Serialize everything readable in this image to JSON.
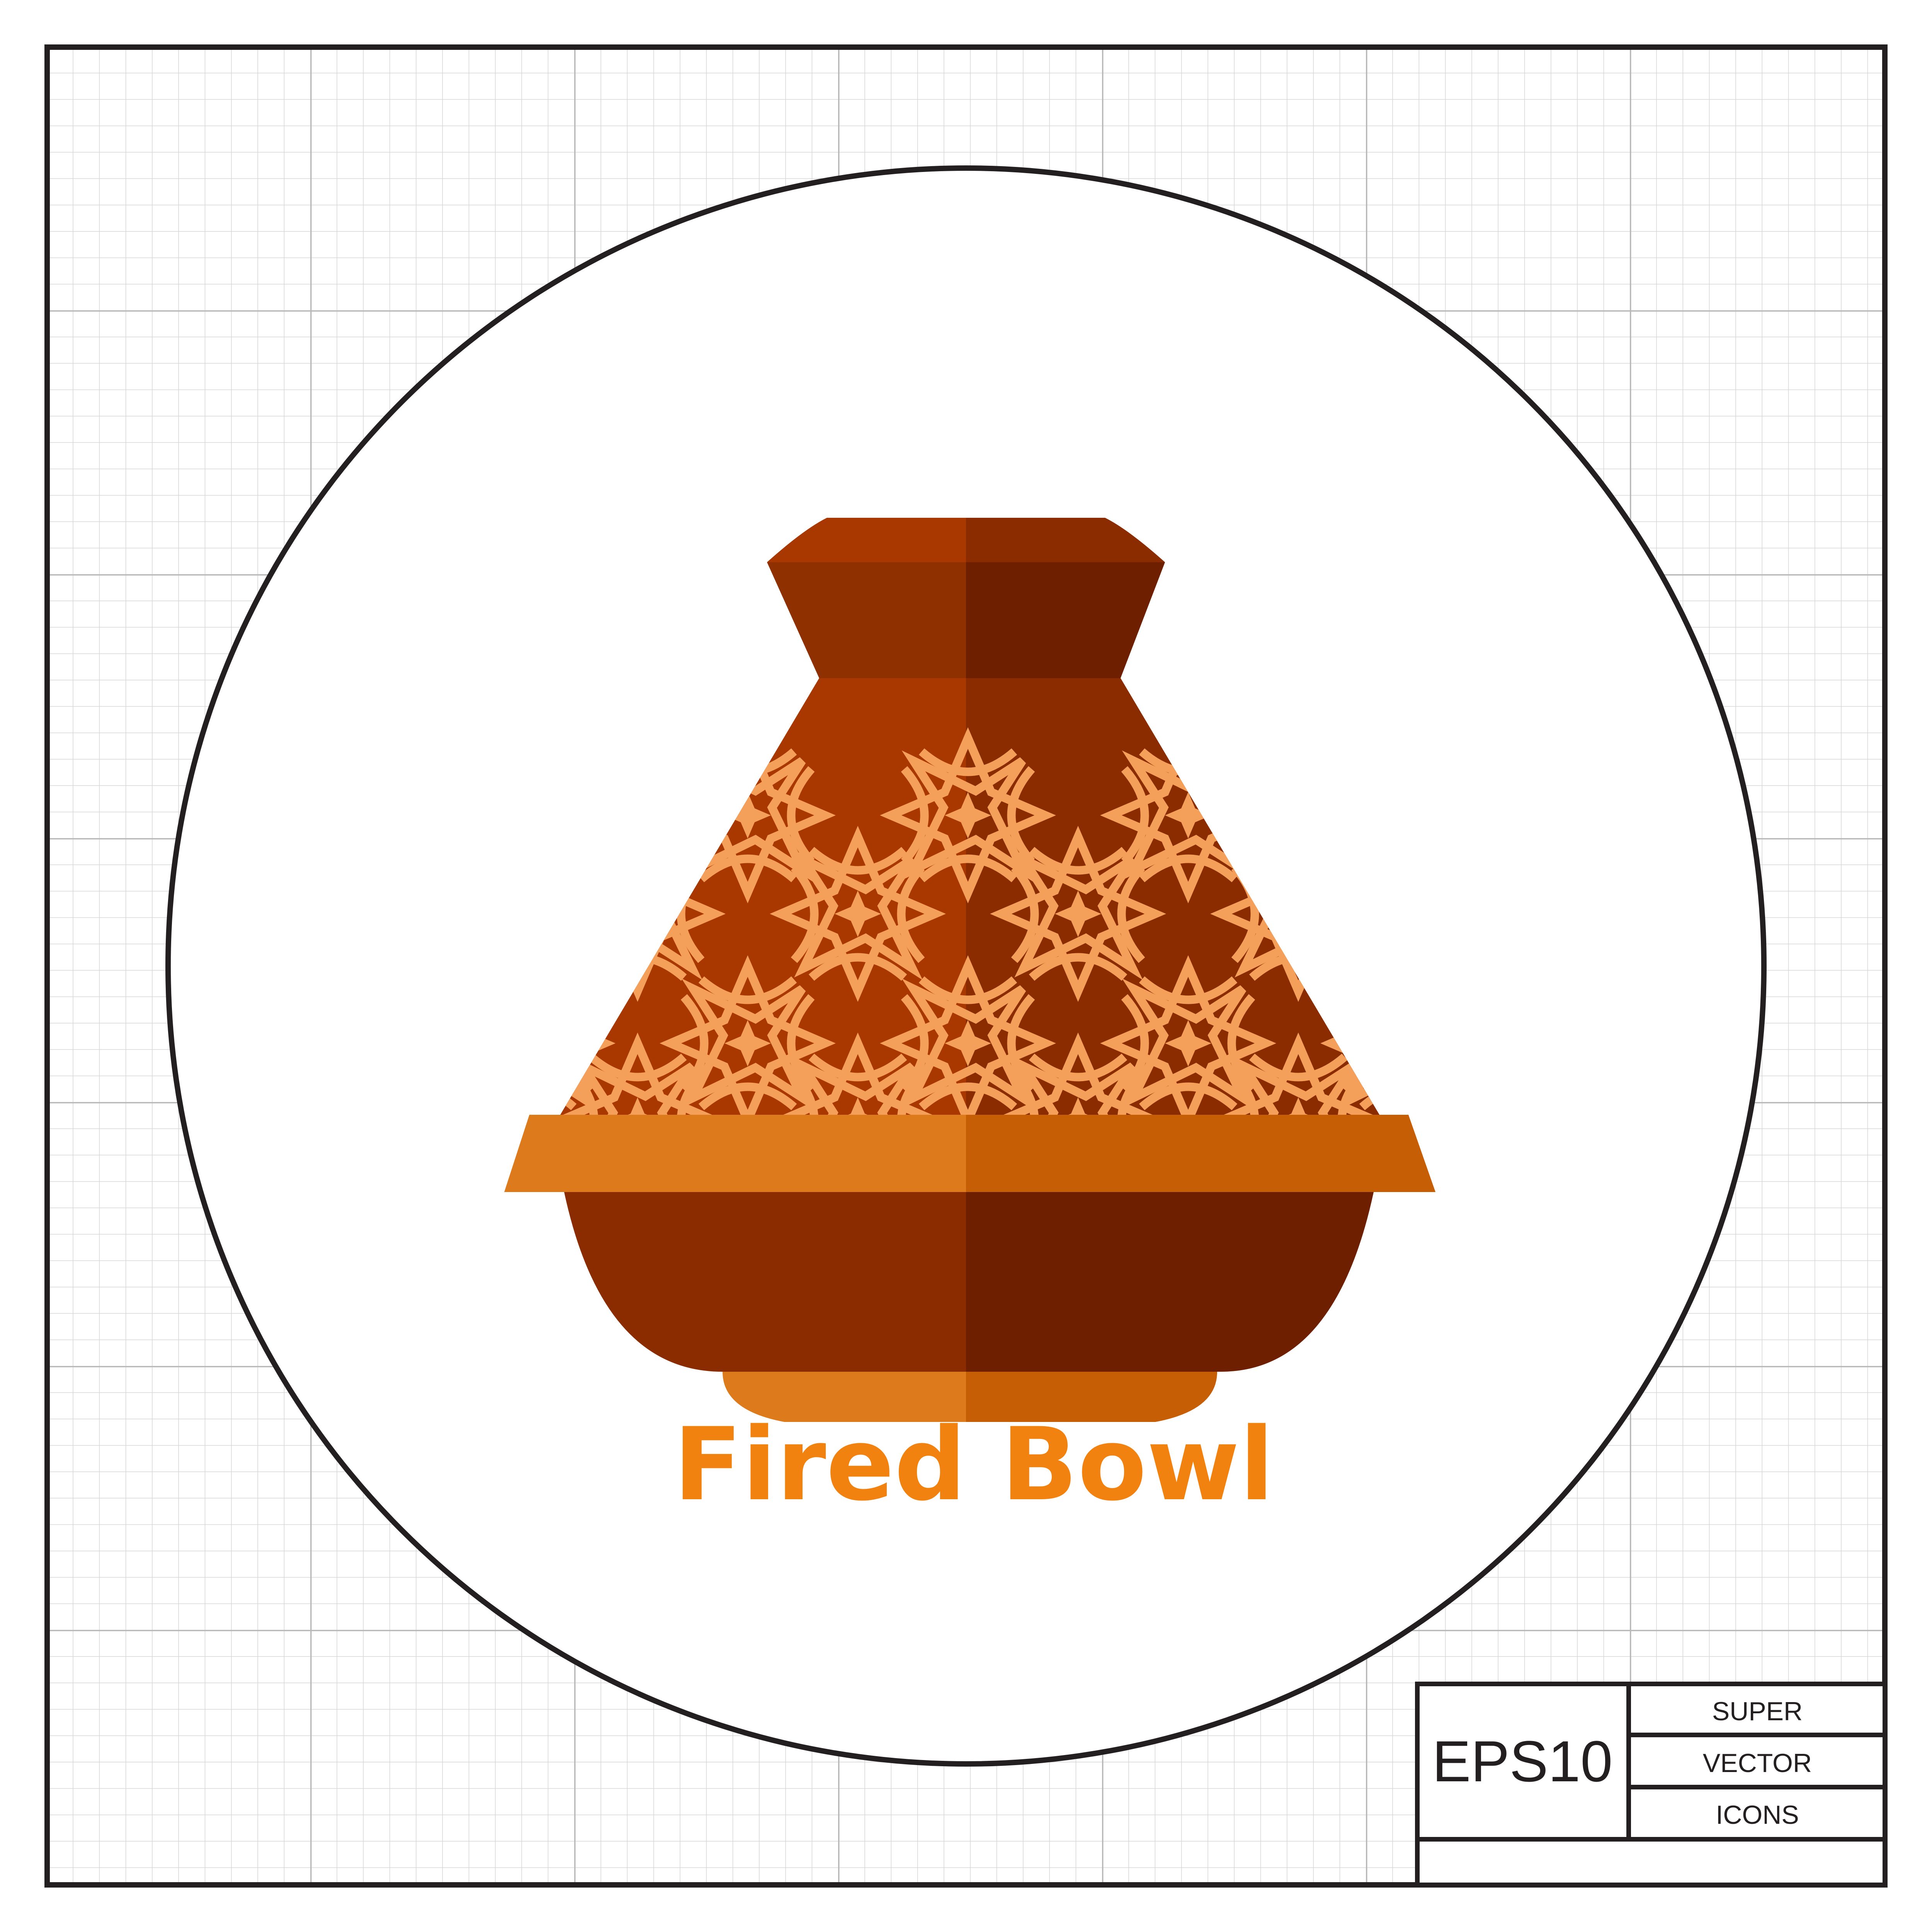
{
  "illustration": {
    "caption": "Fired Bowl",
    "subject_icon": "tagine-pot-icon",
    "colors": {
      "background_grid_minor": "#d3d3d3",
      "background_grid_major": "#b9b9b9",
      "frame": "#231f20",
      "circle_fill": "#ffffff",
      "caption": "#f2820f",
      "lid_top_light": "#a83800",
      "lid_top_dark": "#8b2c00",
      "knob_band_light": "#8f3000",
      "knob_band_dark": "#6e1f00",
      "cone_light": "#a83800",
      "cone_dark": "#8b2c00",
      "pattern": "#f4a05a",
      "rim_light": "#dd7a1c",
      "rim_dark": "#c65e05",
      "bowl_light": "#8b2c00",
      "bowl_dark": "#6e1f00",
      "base_light": "#dd7a1c",
      "base_dark": "#c65e05"
    }
  },
  "badge": {
    "format": "EPS10",
    "line1": "SUPER",
    "line2": "VECTOR",
    "line3": "ICONS"
  }
}
